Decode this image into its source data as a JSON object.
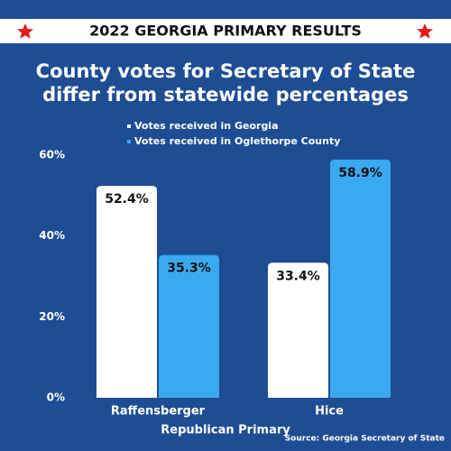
{
  "banner": "2022 GEORGIA PRIMARY RESULTS",
  "chart_data": {
    "type": "bar",
    "title": [
      "County votes for Secretary of State",
      "differ from statewide percentages"
    ],
    "x_label": "Republican Primary",
    "source": "Source: Georgia Secretary of State",
    "categories": [
      "Raffensberger",
      "Hice"
    ],
    "series": [
      {
        "name": "Votes received in Georgia",
        "color": "#ffffff",
        "values": [
          52.4,
          33.4
        ],
        "value_labels": [
          "52.4%",
          "33.4%"
        ]
      },
      {
        "name": "Votes received in Oglethorpe County",
        "color": "#3aaaf0",
        "values": [
          35.3,
          58.9
        ],
        "value_labels": [
          "35.3%",
          "58.9%"
        ]
      }
    ],
    "ylim": [
      0,
      60
    ],
    "yticks": [
      {
        "value": 0,
        "label": "0%"
      },
      {
        "value": 20,
        "label": "20%"
      },
      {
        "value": 40,
        "label": "40%"
      },
      {
        "value": 60,
        "label": "60%"
      }
    ],
    "grid": false
  }
}
